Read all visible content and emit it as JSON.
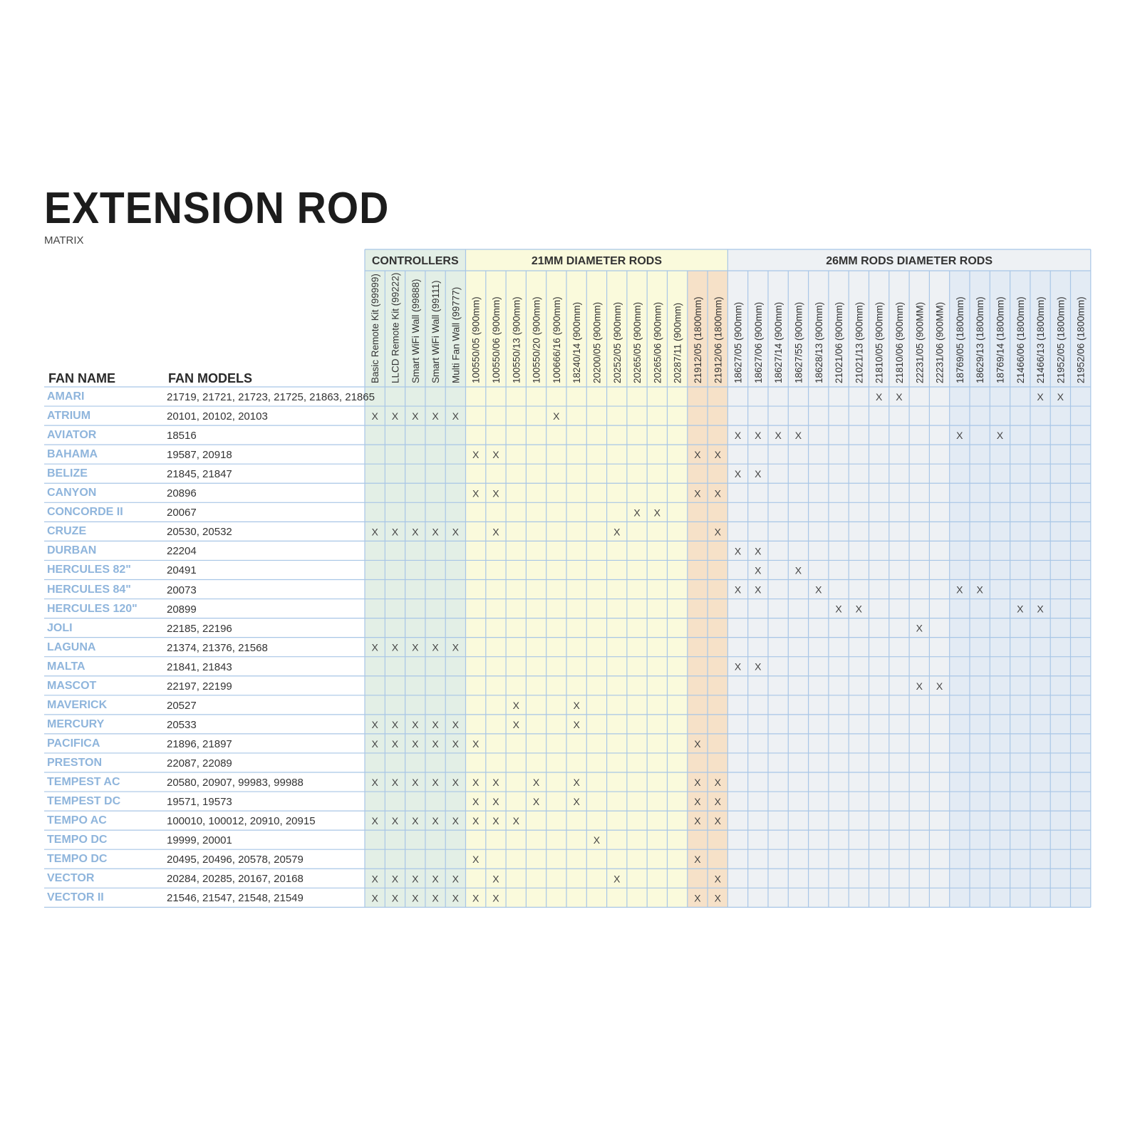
{
  "title": "EXTENSION ROD",
  "subtitle": "MATRIX",
  "header_fan_name": "FAN NAME",
  "header_fan_models": "FAN MODELS",
  "groups": [
    {
      "label": "CONTROLLERS",
      "columns": [
        "Basic Remote Kit (99999)",
        "LLCD Remote Kit (99222)",
        "Smart WiFi Wall (99888)",
        "Smart WiFi Wall (99111)",
        "Multi Fan Wall (99777)"
      ],
      "color": "#e3efe6"
    },
    {
      "label": "21MM DIAMETER RODS",
      "columns": [
        "100550/05 (900mm)",
        "100550/06 (900mm)",
        "100550/13 (900mm)",
        "100550/20 (900mm)",
        "100666/16 (900mm)",
        "18240/14 (900mm)",
        "20200/05 (900mm)",
        "20252/05 (900mm)",
        "20265/05 (900mm)",
        "20265/06 (900mm)",
        "20287/11 (900mm)",
        "21912/05 (1800mm)",
        "21912/06 (1800mm)"
      ],
      "color": "#fafadc"
    },
    {
      "label": "26MM RODS DIAMETER RODS",
      "columns": [
        "18627/05 (900mm)",
        "18627/06 (900mm)",
        "18627/14 (900mm)",
        "18627/55 (900mm)",
        "18628/13 (900mm)",
        "21021/06 (900mm)",
        "21021/13 (900mm)",
        "21810/05 (900mm)",
        "21810/06 (900mm)",
        "22231/05 (900MM)",
        "22231/06 (900MM)",
        "18769/05 (1800mm)",
        "18629/13 (1800mm)",
        "18769/14 (1800mm)",
        "21466/06 (1800mm)",
        "21466/13 (1800mm)",
        "21952/05 (1800mm)",
        "21952/06 (1800mm)"
      ],
      "color": "#eef1f4"
    }
  ],
  "highlight_colors": {
    "rod_1800_21mm": "#f6e1c8",
    "rod_1800_26mm": "#e3ebf4",
    "grid": "#a8c6e6",
    "name": "#8fb5dc"
  },
  "mark": "X",
  "rows": [
    {
      "name": "AMARI",
      "models": "21719, 21721, 21723, 21725, 21863, 21865",
      "marks": [
        25,
        26,
        33,
        34
      ]
    },
    {
      "name": "ATRIUM",
      "models": "20101, 20102, 20103",
      "marks": [
        0,
        1,
        2,
        3,
        4,
        9
      ]
    },
    {
      "name": "AVIATOR",
      "models": "18516",
      "marks": [
        18,
        19,
        20,
        21,
        29,
        31
      ]
    },
    {
      "name": "BAHAMA",
      "models": "19587, 20918",
      "marks": [
        5,
        6,
        16,
        17
      ]
    },
    {
      "name": "BELIZE",
      "models": "21845, 21847",
      "marks": [
        18,
        19
      ]
    },
    {
      "name": "CANYON",
      "models": "20896",
      "marks": [
        5,
        6,
        16,
        17
      ]
    },
    {
      "name": "CONCORDE II",
      "models": "20067",
      "marks": [
        13,
        14
      ]
    },
    {
      "name": "CRUZE",
      "models": "20530, 20532",
      "marks": [
        0,
        1,
        2,
        3,
        4,
        6,
        12,
        17
      ]
    },
    {
      "name": "DURBAN",
      "models": "22204",
      "marks": [
        18,
        19
      ]
    },
    {
      "name": "HERCULES 82\"",
      "models": "20491",
      "marks": [
        19,
        21
      ]
    },
    {
      "name": "HERCULES 84\"",
      "models": "20073",
      "marks": [
        18,
        19,
        22,
        29,
        30
      ]
    },
    {
      "name": "HERCULES 120\"",
      "models": "20899",
      "marks": [
        23,
        24,
        32,
        33
      ]
    },
    {
      "name": "JOLI",
      "models": "22185, 22196",
      "marks": [
        27
      ]
    },
    {
      "name": "LAGUNA",
      "models": "21374, 21376, 21568",
      "marks": [
        0,
        1,
        2,
        3,
        4
      ]
    },
    {
      "name": "MALTA",
      "models": "21841, 21843",
      "marks": [
        18,
        19
      ]
    },
    {
      "name": "MASCOT",
      "models": "22197, 22199",
      "marks": [
        27,
        28
      ]
    },
    {
      "name": "MAVERICK",
      "models": "20527",
      "marks": [
        7,
        10
      ]
    },
    {
      "name": "MERCURY",
      "models": "20533",
      "marks": [
        0,
        1,
        2,
        3,
        4,
        7,
        10
      ]
    },
    {
      "name": "PACIFICA",
      "models": "21896, 21897",
      "marks": [
        0,
        1,
        2,
        3,
        4,
        5,
        16
      ]
    },
    {
      "name": "PRESTON",
      "models": "22087, 22089",
      "marks": []
    },
    {
      "name": "TEMPEST AC",
      "models": "20580, 20907, 99983, 99988",
      "marks": [
        0,
        1,
        2,
        3,
        4,
        5,
        6,
        8,
        10,
        16,
        17
      ]
    },
    {
      "name": "TEMPEST DC",
      "models": "19571, 19573",
      "marks": [
        5,
        6,
        8,
        10,
        16,
        17
      ]
    },
    {
      "name": "TEMPO AC",
      "models": "100010, 100012, 20910, 20915",
      "marks": [
        0,
        1,
        2,
        3,
        4,
        5,
        6,
        7,
        16,
        17
      ]
    },
    {
      "name": "TEMPO DC",
      "models": "19999, 20001",
      "marks": [
        11
      ]
    },
    {
      "name": "TEMPO DC",
      "models": "20495, 20496, 20578, 20579",
      "marks": [
        5,
        16
      ]
    },
    {
      "name": "VECTOR",
      "models": "20284, 20285, 20167, 20168",
      "marks": [
        0,
        1,
        2,
        3,
        4,
        6,
        12,
        17
      ]
    },
    {
      "name": "VECTOR II",
      "models": "21546, 21547, 21548, 21549",
      "marks": [
        0,
        1,
        2,
        3,
        4,
        5,
        6,
        16,
        17
      ]
    }
  ]
}
